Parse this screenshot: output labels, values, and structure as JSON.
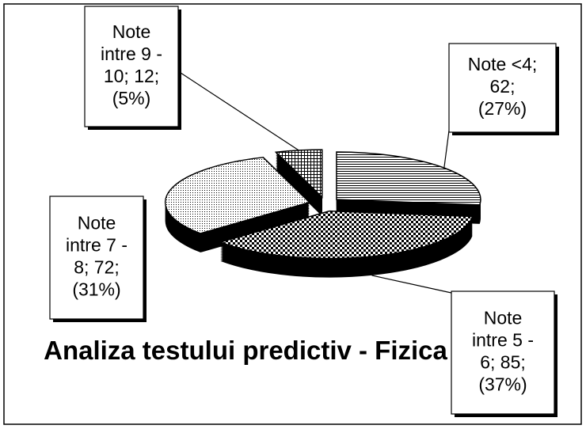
{
  "chart_data": {
    "type": "pie3d",
    "title": "Analiza testului predictiv - Fizica",
    "categories": [
      "Note <4",
      "Note intre 5 - 6",
      "Note intre 7 - 8",
      "Note intre 9 - 10"
    ],
    "values": [
      62,
      85,
      72,
      12
    ],
    "data_labels": [
      [
        "Note <4;",
        "62;",
        "(27%)"
      ],
      [
        "Note",
        "intre 5 -",
        "6; 85;",
        "(37%)"
      ],
      [
        "Note",
        "intre 7 -",
        "8; 72;",
        "(31%)"
      ],
      [
        "Note",
        "intre 9 -",
        "10; 12;",
        "(5%)"
      ]
    ],
    "patterns": [
      "hlines",
      "checker",
      "dots",
      "grid"
    ],
    "color": "#000000"
  }
}
